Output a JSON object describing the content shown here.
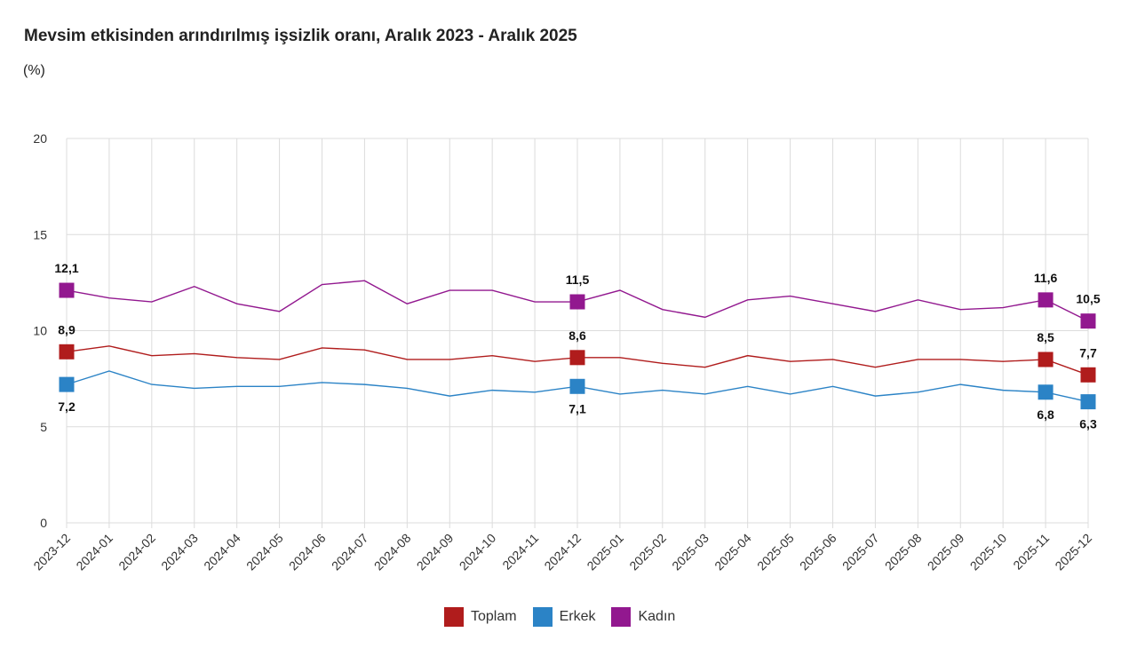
{
  "title": "Mevsim etkisinden arındırılmış işsizlik oranı, Aralık 2023 - Aralık 2025",
  "unit": "(%)",
  "chart_data": {
    "type": "line",
    "title": "Mevsim etkisinden arındırılmış işsizlik oranı, Aralık 2023 - Aralık 2025",
    "ylabel": "(%)",
    "ylim": [
      0,
      20
    ],
    "yticks": [
      "0",
      "5",
      "10",
      "15",
      "20"
    ],
    "grid": true,
    "legend": "bottom-center",
    "x": [
      "2023-12",
      "2024-01",
      "2024-02",
      "2024-03",
      "2024-04",
      "2024-05",
      "2024-06",
      "2024-07",
      "2024-08",
      "2024-09",
      "2024-10",
      "2024-11",
      "2024-12",
      "2025-01",
      "2025-02",
      "2025-03",
      "2025-04",
      "2025-05",
      "2025-06",
      "2025-07",
      "2025-08",
      "2025-09",
      "2025-10",
      "2025-11",
      "2025-12"
    ],
    "series": [
      {
        "name": "Toplam",
        "color": "#b01c1c",
        "values": [
          8.9,
          9.2,
          8.7,
          8.8,
          8.6,
          8.5,
          9.1,
          9.0,
          8.5,
          8.5,
          8.7,
          8.4,
          8.6,
          8.6,
          8.3,
          8.1,
          8.7,
          8.4,
          8.5,
          8.1,
          8.5,
          8.5,
          8.4,
          8.5,
          7.7
        ],
        "labels": {
          "0": "8,9",
          "12": "8,6",
          "23": "8,5",
          "24": "7,7"
        }
      },
      {
        "name": "Erkek",
        "color": "#2b83c6",
        "values": [
          7.2,
          7.9,
          7.2,
          7.0,
          7.1,
          7.1,
          7.3,
          7.2,
          7.0,
          6.6,
          6.9,
          6.8,
          7.1,
          6.7,
          6.9,
          6.7,
          7.1,
          6.7,
          7.1,
          6.6,
          6.8,
          7.2,
          6.9,
          6.8,
          6.3
        ],
        "labels": {
          "0": "7,2",
          "12": "7,1",
          "23": "6,8",
          "24": "6,3"
        }
      },
      {
        "name": "Kadın",
        "color": "#92188f",
        "values": [
          12.1,
          11.7,
          11.5,
          12.3,
          11.4,
          11.0,
          12.4,
          12.6,
          11.4,
          12.1,
          12.1,
          11.5,
          11.5,
          12.1,
          11.1,
          10.7,
          11.6,
          11.8,
          11.4,
          11.0,
          11.6,
          11.1,
          11.2,
          11.6,
          10.5
        ],
        "labels": {
          "0": "12,1",
          "12": "11,5",
          "23": "11,6",
          "24": "10,5"
        }
      }
    ]
  }
}
